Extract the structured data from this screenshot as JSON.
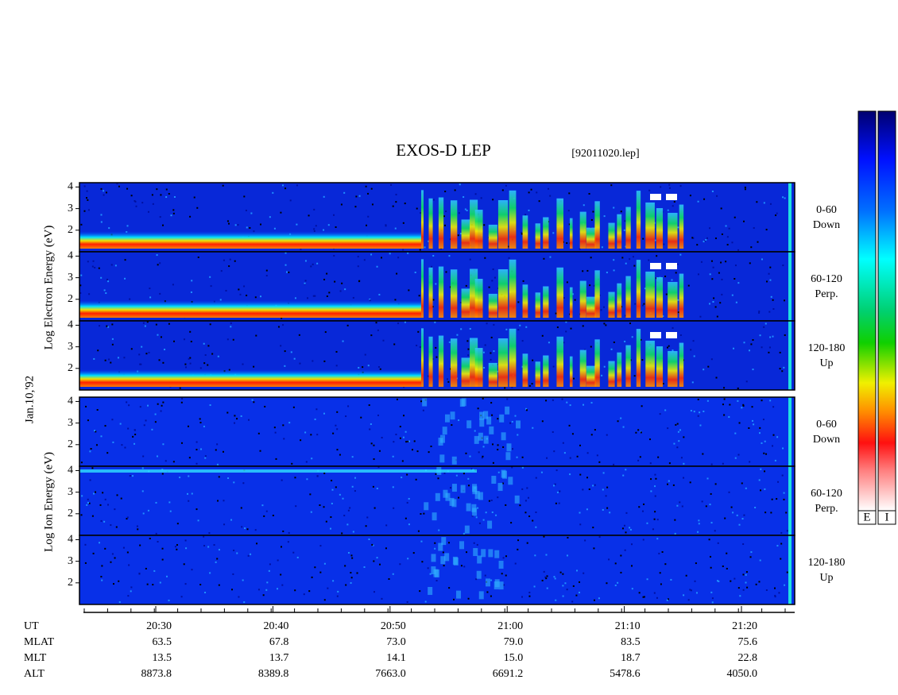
{
  "header": {
    "title": "EXOS-D LEP",
    "file": "[92011020.lep]"
  },
  "date": "Jan.10,'92",
  "electron": {
    "axis_label": "Log Electron Energy (eV)",
    "panels": [
      {
        "angle": "0-60",
        "direction": "Down"
      },
      {
        "angle": "60-120",
        "direction": "Perp."
      },
      {
        "angle": "120-180",
        "direction": "Up"
      }
    ]
  },
  "ion": {
    "axis_label": "Log Ion Energy (eV)",
    "panels": [
      {
        "angle": "0-60",
        "direction": "Down"
      },
      {
        "angle": "60-120",
        "direction": "Perp."
      },
      {
        "angle": "120-180",
        "direction": "Up"
      }
    ]
  },
  "energy_axis": {
    "ylim": [
      1,
      4.2
    ],
    "yticks": [
      2,
      3,
      4
    ]
  },
  "time_axis": {
    "row_labels": [
      "UT",
      "MLAT",
      "MLT",
      "ALT"
    ],
    "columns": [
      [
        "20:30",
        "63.5",
        "13.5",
        "8873.8"
      ],
      [
        "20:40",
        "67.8",
        "13.7",
        "8389.8"
      ],
      [
        "20:50",
        "73.0",
        "14.1",
        "7663.0"
      ],
      [
        "21:00",
        "79.0",
        "15.0",
        "6691.2"
      ],
      [
        "21:10",
        "83.5",
        "18.7",
        "5478.6"
      ],
      [
        "21:20",
        "75.6",
        "22.8",
        "4050.0"
      ]
    ]
  },
  "colorbar": {
    "labels": [
      "E",
      "I"
    ]
  }
}
